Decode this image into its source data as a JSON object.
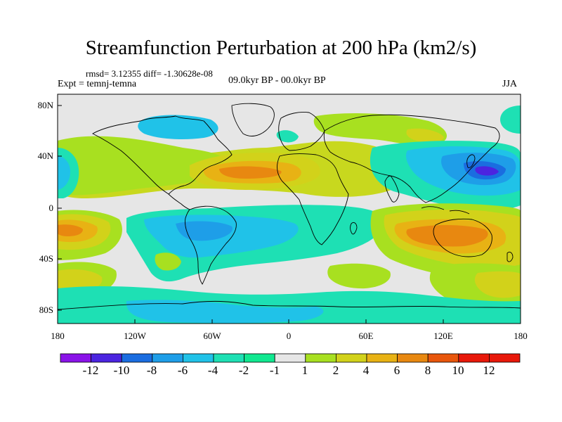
{
  "title": "Streamfunction Perturbation at 200 hPa (km2/s)",
  "stats": "rmsd= 3.12355 diff= -1.30628e-08",
  "experiment": "Expt = temnj-temna",
  "period": "09.0kyr BP - 00.0kyr BP",
  "season": "JJA",
  "lat_labels": [
    "80N",
    "40N",
    "0",
    "40S",
    "80S"
  ],
  "lon_labels": [
    "180",
    "120W",
    "60W",
    "0",
    "60E",
    "120E",
    "180"
  ],
  "colorbar": {
    "labels": [
      "-12",
      "-10",
      "-8",
      "-6",
      "-4",
      "-2",
      "-1",
      "1",
      "2",
      "4",
      "6",
      "8",
      "10",
      "12"
    ],
    "colors": [
      "#8a13e8",
      "#4b24e0",
      "#1a6de0",
      "#1e9ee8",
      "#20c2e8",
      "#1ee0b4",
      "#10e890",
      "#e6e6e6",
      "#a8e020",
      "#d2d21a",
      "#e8b214",
      "#e88810",
      "#e8560c",
      "#e8180a"
    ]
  },
  "map_style": {
    "background": "#e6e6e6",
    "coastline": "#000000"
  }
}
